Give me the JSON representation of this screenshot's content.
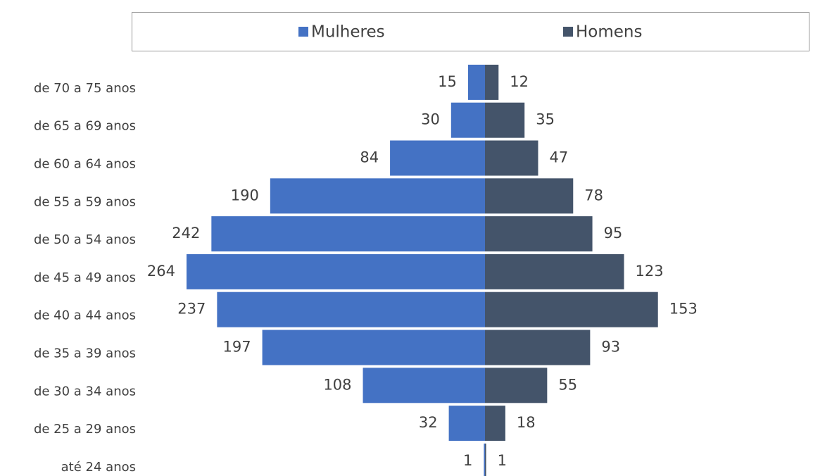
{
  "chart_data": {
    "type": "pyramid",
    "categories": [
      "de 70 a 75 anos",
      "de 65 a 69 anos",
      "de 60 a 64 anos",
      "de 55 a 59 anos",
      "de 50 a 54 anos",
      "de 45 a 49 anos",
      "de 40 a 44 anos",
      "de 35 a 39 anos",
      "de 30 a 34 anos",
      "de 25 a 29 anos",
      "até 24 anos"
    ],
    "series": [
      {
        "name": "Mulheres",
        "color": "#4472c4",
        "values": [
          15,
          30,
          84,
          190,
          242,
          264,
          237,
          197,
          108,
          32,
          1
        ]
      },
      {
        "name": "Homens",
        "color": "#44546a",
        "values": [
          12,
          35,
          47,
          78,
          95,
          123,
          153,
          93,
          55,
          18,
          1
        ]
      }
    ],
    "legend": "top"
  }
}
